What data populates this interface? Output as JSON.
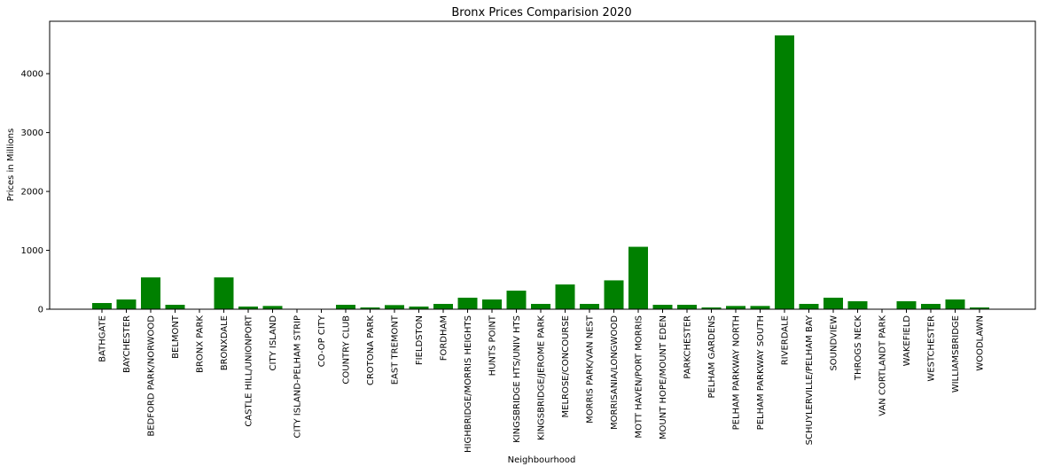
{
  "chart_data": {
    "type": "bar",
    "title": "Bronx Prices Comparision 2020",
    "xlabel": "Neighbourhood",
    "ylabel": "Prices in Millions",
    "ylim": [
      0,
      4890
    ],
    "yticks": [
      0,
      1000,
      2000,
      3000,
      4000
    ],
    "bar_color": "#008000",
    "grid": false,
    "categories": [
      "BATHGATE",
      "BAYCHESTER",
      "BEDFORD PARK/NORWOOD",
      "BELMONT",
      "BRONX PARK",
      "BRONXDALE",
      "CASTLE HILL/UNIONPORT",
      "CITY ISLAND",
      "CITY ISLAND-PELHAM STRIP",
      "CO-OP CITY",
      "COUNTRY CLUB",
      "CROTONA PARK",
      "EAST TREMONT",
      "FIELDSTON",
      "FORDHAM",
      "HIGHBRIDGE/MORRIS HEIGHTS",
      "HUNTS POINT",
      "KINGSBRIDGE HTS/UNIV HTS",
      "KINGSBRIDGE/JEROME PARK",
      "MELROSE/CONCOURSE",
      "MORRIS PARK/VAN NEST",
      "MORRISANIA/LONGWOOD",
      "MOTT HAVEN/PORT MORRIS",
      "MOUNT HOPE/MOUNT EDEN",
      "PARKCHESTER",
      "PELHAM GARDENS",
      "PELHAM PARKWAY NORTH",
      "PELHAM PARKWAY SOUTH",
      "RIVERDALE",
      "SCHUYLERVILLE/PELHAM BAY",
      "SOUNDVIEW",
      "THROGS NECK",
      "VAN CORTLANDT PARK",
      "WAKEFIELD",
      "WESTCHESTER",
      "WILLIAMSBRIDGE",
      "WOODLAWN"
    ],
    "values": [
      105,
      165,
      540,
      75,
      0,
      540,
      45,
      55,
      0,
      0,
      75,
      30,
      70,
      45,
      90,
      195,
      165,
      315,
      90,
      420,
      90,
      490,
      1060,
      75,
      75,
      30,
      55,
      55,
      4650,
      90,
      195,
      135,
      0,
      135,
      90,
      165,
      30
    ]
  }
}
